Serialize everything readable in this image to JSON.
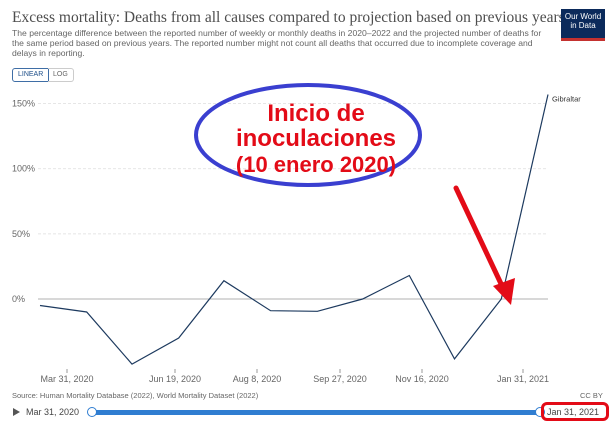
{
  "header": {
    "title": "Excess mortality: Deaths from all causes compared to projection based on previous years",
    "subtitle": "The percentage difference between the reported number of weekly or monthly deaths in 2020–2022 and the projected number of deaths for the same period based on previous years. The reported number might not count all deaths that occurred due to incomplete coverage and delays in reporting.",
    "logo_line1": "Our World",
    "logo_line2": "in Data"
  },
  "controls": {
    "linear_label": "LINEAR",
    "log_label": "LOG",
    "selected": "LINEAR"
  },
  "annotation": {
    "line1": "Inicio de",
    "line2": "inoculaciones",
    "line3": "(10 enero 2020)",
    "text_color": "#e30b17",
    "ellipse_color": "#3a3fd0",
    "arrow_color": "#e30b17"
  },
  "chart_data": {
    "type": "line",
    "series": [
      {
        "name": "Gibraltar",
        "color": "#1d3a5f",
        "points": [
          {
            "x": "2020-02-29",
            "y": -5
          },
          {
            "x": "2020-03-31",
            "y": -10
          },
          {
            "x": "2020-04-30",
            "y": -50
          },
          {
            "x": "2020-05-31",
            "y": -30
          },
          {
            "x": "2020-06-30",
            "y": 14
          },
          {
            "x": "2020-07-31",
            "y": -9
          },
          {
            "x": "2020-08-31",
            "y": -9.5
          },
          {
            "x": "2020-09-30",
            "y": 0
          },
          {
            "x": "2020-10-31",
            "y": 18
          },
          {
            "x": "2020-11-30",
            "y": -46
          },
          {
            "x": "2020-12-31",
            "y": 0
          },
          {
            "x": "2021-01-31",
            "y": 157
          }
        ]
      }
    ],
    "x_ticks": [
      "Mar 31, 2020",
      "Jun 19, 2020",
      "Aug 8, 2020",
      "Sep 27, 2020",
      "Nov 16, 2020",
      "Jan 31, 2021"
    ],
    "y_ticks": [
      {
        "value": 150,
        "label": "150%"
      },
      {
        "value": 100,
        "label": "100%"
      },
      {
        "value": 50,
        "label": "50%"
      },
      {
        "value": 0,
        "label": "0%"
      }
    ],
    "ylim": [
      -53,
      162
    ],
    "grid": "horizontal-dashed",
    "zero_line": true
  },
  "footer": {
    "source": "Source: Human Mortality Database (2022), World Mortality Dataset (2022)",
    "license": "CC BY"
  },
  "timeline": {
    "start_label": "Mar 31, 2020",
    "end_label": "Jan 31, 2021"
  }
}
